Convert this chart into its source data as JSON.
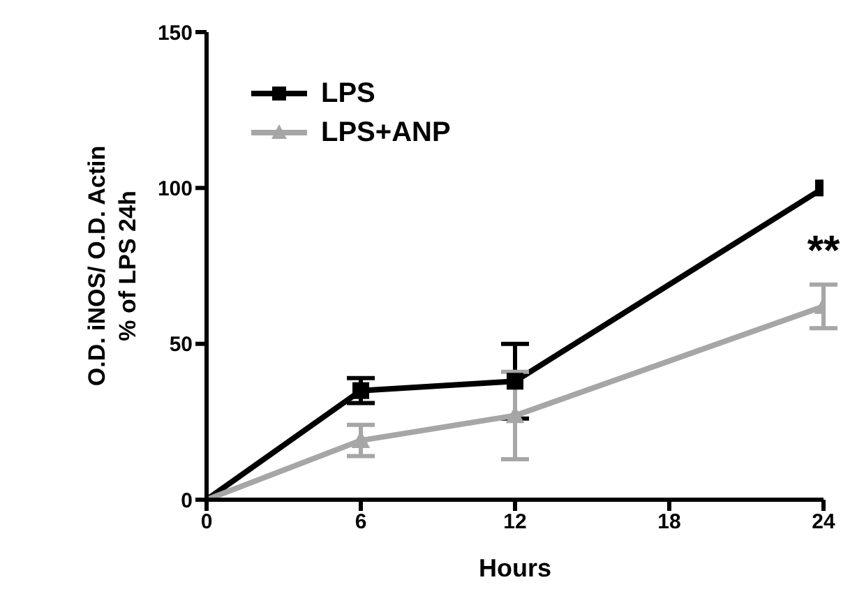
{
  "chart_data": {
    "type": "line",
    "xlabel": "Hours",
    "ylabel": "O.D. iNOS/ O.D. Actin\n% of LPS 24h",
    "x": [
      0,
      6,
      12,
      24
    ],
    "series": [
      {
        "name": "LPS",
        "color": "#000000",
        "marker": "square",
        "values": [
          0,
          35,
          38,
          100
        ],
        "errors": [
          null,
          4,
          12,
          null
        ]
      },
      {
        "name": "LPS+ANP",
        "color": "#a6a6a6",
        "marker": "triangle",
        "values": [
          0,
          19,
          27,
          62
        ],
        "errors": [
          null,
          5,
          14,
          7
        ]
      }
    ],
    "xlim": [
      0,
      24
    ],
    "xticks": [
      0,
      6,
      12,
      18,
      24
    ],
    "ylim": [
      0,
      150
    ],
    "yticks": [
      0,
      50,
      100,
      150
    ],
    "grid": false,
    "legend": "top left",
    "line_style": "solid",
    "annotations": [
      "**"
    ]
  }
}
